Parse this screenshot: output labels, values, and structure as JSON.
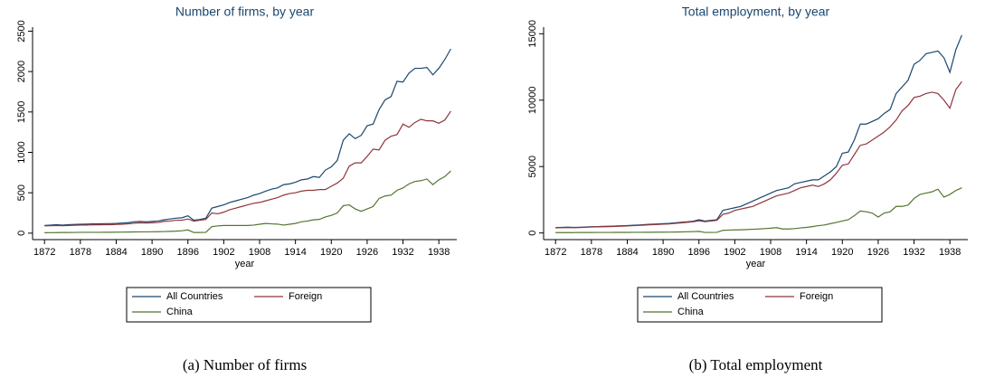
{
  "chart_data": [
    {
      "type": "line",
      "title": "Number of firms, by year",
      "x_label": "year",
      "caption": "(a)  Number of firms",
      "x": [
        1872,
        1873,
        1874,
        1875,
        1876,
        1877,
        1878,
        1879,
        1880,
        1881,
        1882,
        1883,
        1884,
        1885,
        1886,
        1887,
        1888,
        1889,
        1890,
        1891,
        1892,
        1893,
        1894,
        1895,
        1896,
        1897,
        1898,
        1899,
        1900,
        1901,
        1902,
        1903,
        1904,
        1905,
        1906,
        1907,
        1908,
        1909,
        1910,
        1911,
        1912,
        1913,
        1914,
        1915,
        1916,
        1917,
        1918,
        1919,
        1920,
        1921,
        1922,
        1923,
        1924,
        1925,
        1926,
        1927,
        1928,
        1929,
        1930,
        1931,
        1932,
        1933,
        1934,
        1935,
        1936,
        1937,
        1938,
        1939,
        1940
      ],
      "xlim": [
        1870,
        1941
      ],
      "xticks": [
        1872,
        1878,
        1884,
        1890,
        1896,
        1902,
        1908,
        1914,
        1920,
        1926,
        1932,
        1938
      ],
      "ylim": [
        -80,
        2550
      ],
      "yticks": [
        0,
        500,
        1000,
        1500,
        2000,
        2500
      ],
      "grid": false,
      "legend": "bottom",
      "series": [
        {
          "name": "All Countries",
          "color": "#1a476f",
          "values": [
            95,
            100,
            105,
            100,
            105,
            108,
            110,
            112,
            115,
            115,
            118,
            118,
            120,
            125,
            130,
            140,
            145,
            140,
            145,
            150,
            165,
            175,
            185,
            190,
            215,
            160,
            170,
            185,
            310,
            330,
            350,
            380,
            400,
            420,
            440,
            470,
            490,
            520,
            545,
            560,
            600,
            610,
            630,
            660,
            670,
            700,
            690,
            780,
            820,
            900,
            1150,
            1230,
            1170,
            1210,
            1330,
            1350,
            1530,
            1650,
            1690,
            1880,
            1870,
            1980,
            2040,
            2040,
            2050,
            1960,
            2040,
            2150,
            2280
          ]
        },
        {
          "name": "Foreign",
          "color": "#90353b",
          "values": [
            90,
            92,
            95,
            92,
            95,
            98,
            100,
            100,
            103,
            103,
            105,
            105,
            108,
            110,
            115,
            122,
            128,
            125,
            128,
            132,
            145,
            150,
            160,
            160,
            175,
            150,
            160,
            170,
            250,
            240,
            260,
            290,
            310,
            330,
            350,
            370,
            380,
            400,
            420,
            440,
            470,
            490,
            500,
            520,
            530,
            530,
            540,
            540,
            580,
            620,
            680,
            830,
            870,
            870,
            950,
            1040,
            1030,
            1150,
            1200,
            1220,
            1350,
            1310,
            1370,
            1410,
            1390,
            1390,
            1360,
            1400,
            1510
          ]
        },
        {
          "name": "China",
          "color": "#55752f",
          "values": [
            5,
            6,
            7,
            8,
            8,
            9,
            10,
            10,
            10,
            10,
            11,
            11,
            12,
            13,
            14,
            15,
            16,
            16,
            17,
            18,
            20,
            22,
            25,
            30,
            40,
            8,
            8,
            10,
            80,
            90,
            95,
            95,
            95,
            95,
            95,
            100,
            110,
            120,
            115,
            112,
            100,
            110,
            120,
            140,
            150,
            165,
            170,
            200,
            220,
            250,
            340,
            350,
            300,
            270,
            300,
            330,
            430,
            460,
            470,
            530,
            560,
            610,
            640,
            650,
            670,
            600,
            660,
            700,
            770
          ]
        }
      ]
    },
    {
      "type": "line",
      "title": "Total employment, by year",
      "x_label": "year",
      "caption": "(b)  Total employment",
      "x": [
        1872,
        1873,
        1874,
        1875,
        1876,
        1877,
        1878,
        1879,
        1880,
        1881,
        1882,
        1883,
        1884,
        1885,
        1886,
        1887,
        1888,
        1889,
        1890,
        1891,
        1892,
        1893,
        1894,
        1895,
        1896,
        1897,
        1898,
        1899,
        1900,
        1901,
        1902,
        1903,
        1904,
        1905,
        1906,
        1907,
        1908,
        1909,
        1910,
        1911,
        1912,
        1913,
        1914,
        1915,
        1916,
        1917,
        1918,
        1919,
        1920,
        1921,
        1922,
        1923,
        1924,
        1925,
        1926,
        1927,
        1928,
        1929,
        1930,
        1931,
        1932,
        1933,
        1934,
        1935,
        1936,
        1937,
        1938,
        1939,
        1940
      ],
      "xlim": [
        1870,
        1941
      ],
      "xticks": [
        1872,
        1878,
        1884,
        1890,
        1896,
        1902,
        1908,
        1914,
        1920,
        1926,
        1932,
        1938
      ],
      "ylim": [
        -500,
        15500
      ],
      "yticks": [
        0,
        5000,
        10000,
        15000
      ],
      "grid": false,
      "legend": "bottom",
      "series": [
        {
          "name": "All Countries",
          "color": "#1a476f",
          "values": [
            400,
            420,
            440,
            420,
            430,
            450,
            470,
            480,
            500,
            510,
            520,
            540,
            560,
            580,
            600,
            630,
            660,
            680,
            700,
            720,
            760,
            800,
            840,
            880,
            1000,
            900,
            950,
            1000,
            1700,
            1800,
            1900,
            2000,
            2200,
            2400,
            2600,
            2800,
            3000,
            3200,
            3300,
            3400,
            3700,
            3800,
            3900,
            4000,
            4000,
            4300,
            4600,
            5000,
            6000,
            6100,
            7000,
            8200,
            8200,
            8400,
            8600,
            9000,
            9300,
            10500,
            11000,
            11500,
            12700,
            13000,
            13500,
            13600,
            13700,
            13200,
            12100,
            13800,
            14900
          ]
        },
        {
          "name": "Foreign",
          "color": "#90353b",
          "values": [
            380,
            400,
            410,
            400,
            410,
            430,
            450,
            460,
            470,
            480,
            490,
            510,
            530,
            550,
            570,
            600,
            620,
            640,
            660,
            680,
            720,
            760,
            800,
            840,
            920,
            850,
            900,
            950,
            1400,
            1500,
            1700,
            1800,
            1900,
            2000,
            2200,
            2400,
            2600,
            2800,
            2900,
            3000,
            3200,
            3400,
            3500,
            3600,
            3500,
            3700,
            4000,
            4500,
            5100,
            5200,
            5900,
            6600,
            6700,
            7000,
            7300,
            7600,
            8000,
            8500,
            9200,
            9600,
            10200,
            10300,
            10500,
            10600,
            10500,
            10000,
            9400,
            10800,
            11400
          ]
        },
        {
          "name": "China",
          "color": "#55752f",
          "values": [
            30,
            30,
            30,
            30,
            35,
            35,
            35,
            40,
            40,
            40,
            45,
            45,
            45,
            50,
            50,
            55,
            55,
            60,
            60,
            65,
            70,
            80,
            90,
            100,
            120,
            40,
            40,
            50,
            200,
            220,
            230,
            240,
            260,
            280,
            300,
            330,
            360,
            400,
            300,
            300,
            330,
            380,
            420,
            480,
            550,
            600,
            700,
            800,
            900,
            1000,
            1300,
            1650,
            1600,
            1500,
            1200,
            1500,
            1600,
            2000,
            2000,
            2100,
            2600,
            2900,
            3000,
            3100,
            3300,
            2700,
            2900,
            3200,
            3400
          ]
        }
      ]
    }
  ]
}
